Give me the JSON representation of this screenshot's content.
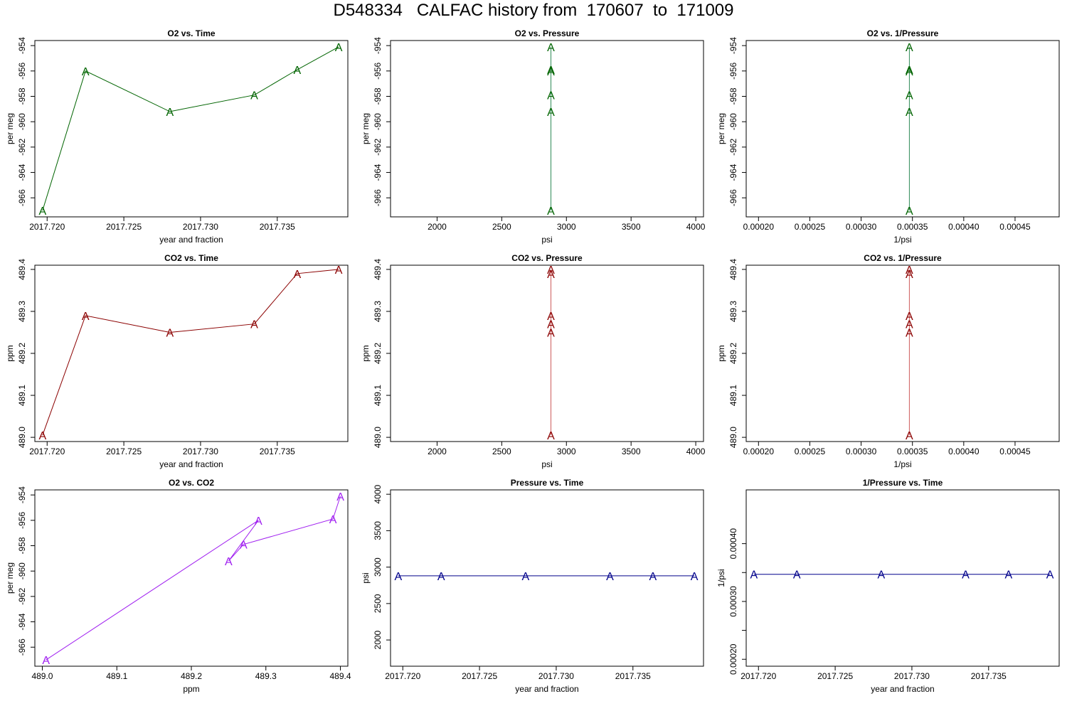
{
  "title": "D548334   CALFAC history from  170607  to  171009",
  "colors": {
    "o2": "#006400",
    "co2": "#8b0000",
    "o2_vs_co2": "#a020f0",
    "pressure": "#00008b",
    "co2_line_vs_pressure": "#cd5c5c",
    "o2_line_vs_pressure": "#2e8b57"
  },
  "chart_data": [
    {
      "id": "o2-vs-time",
      "type": "line",
      "title": "O2 vs. Time",
      "xlabel": "year and fraction",
      "ylabel": "per meg",
      "xlim": [
        2017.7192,
        2017.7396
      ],
      "ylim": [
        -967.5,
        -953.6
      ],
      "xticks": [
        "2017.720",
        "2017.725",
        "2017.730",
        "2017.735"
      ],
      "xtick_values": [
        2017.72,
        2017.725,
        2017.73,
        2017.735
      ],
      "yticks": [
        "-966",
        "-964",
        "-962",
        "-960",
        "-958",
        "-956",
        "-954"
      ],
      "ytick_values": [
        -966,
        -964,
        -962,
        -960,
        -958,
        -956,
        -954
      ],
      "marker": "A",
      "color": "#006400",
      "line_color": "#006400",
      "points": [
        [
          2017.7197,
          -967.0
        ],
        [
          2017.7225,
          -956.0
        ],
        [
          2017.728,
          -959.2
        ],
        [
          2017.7335,
          -957.9
        ],
        [
          2017.7363,
          -955.9
        ],
        [
          2017.739,
          -954.1
        ]
      ]
    },
    {
      "id": "o2-vs-pressure",
      "type": "line",
      "title": "O2 vs. Pressure",
      "xlabel": "psi",
      "ylabel": "per meg",
      "xlim": [
        1640,
        4060
      ],
      "ylim": [
        -967.5,
        -953.6
      ],
      "xticks": [
        "2000",
        "2500",
        "3000",
        "3500",
        "4000"
      ],
      "xtick_values": [
        2000,
        2500,
        3000,
        3500,
        4000
      ],
      "yticks": [
        "-966",
        "-964",
        "-962",
        "-960",
        "-958",
        "-956",
        "-954"
      ],
      "ytick_values": [
        -966,
        -964,
        -962,
        -960,
        -958,
        -956,
        -954
      ],
      "marker": "A",
      "color": "#006400",
      "line_color": "#2e8b57",
      "points": [
        [
          2880,
          -967.0
        ],
        [
          2880,
          -956.0
        ],
        [
          2880,
          -959.2
        ],
        [
          2880,
          -957.9
        ],
        [
          2880,
          -955.9
        ],
        [
          2880,
          -954.1
        ]
      ]
    },
    {
      "id": "o2-vs-inv-pressure",
      "type": "line",
      "title": "O2 vs. 1/Pressure",
      "xlabel": "1/psi",
      "ylabel": "per meg",
      "xlim": [
        0.000188,
        0.000493
      ],
      "ylim": [
        -967.5,
        -953.6
      ],
      "xticks": [
        "0.00020",
        "0.00025",
        "0.00030",
        "0.00035",
        "0.00040",
        "0.00045"
      ],
      "xtick_values": [
        0.0002,
        0.00025,
        0.0003,
        0.00035,
        0.0004,
        0.00045
      ],
      "yticks": [
        "-966",
        "-964",
        "-962",
        "-960",
        "-958",
        "-956",
        "-954"
      ],
      "ytick_values": [
        -966,
        -964,
        -962,
        -960,
        -958,
        -956,
        -954
      ],
      "marker": "A",
      "color": "#006400",
      "line_color": "#2e8b57",
      "points": [
        [
          0.000347,
          -967.0
        ],
        [
          0.000347,
          -956.0
        ],
        [
          0.000347,
          -959.2
        ],
        [
          0.000347,
          -957.9
        ],
        [
          0.000347,
          -955.9
        ],
        [
          0.000347,
          -954.1
        ]
      ]
    },
    {
      "id": "co2-vs-time",
      "type": "line",
      "title": "CO2 vs. Time",
      "xlabel": "year and fraction",
      "ylabel": "ppm",
      "xlim": [
        2017.7192,
        2017.7396
      ],
      "ylim": [
        488.99,
        489.41
      ],
      "xticks": [
        "2017.720",
        "2017.725",
        "2017.730",
        "2017.735"
      ],
      "xtick_values": [
        2017.72,
        2017.725,
        2017.73,
        2017.735
      ],
      "yticks": [
        "489.0",
        "489.1",
        "489.2",
        "489.3",
        "489.4"
      ],
      "ytick_values": [
        489.0,
        489.1,
        489.2,
        489.3,
        489.4
      ],
      "marker": "A",
      "color": "#8b0000",
      "line_color": "#8b0000",
      "points": [
        [
          2017.7197,
          489.005
        ],
        [
          2017.7225,
          489.29
        ],
        [
          2017.728,
          489.25
        ],
        [
          2017.7335,
          489.27
        ],
        [
          2017.7363,
          489.39
        ],
        [
          2017.739,
          489.4
        ]
      ]
    },
    {
      "id": "co2-vs-pressure",
      "type": "line",
      "title": "CO2 vs. Pressure",
      "xlabel": "psi",
      "ylabel": "ppm",
      "xlim": [
        1640,
        4060
      ],
      "ylim": [
        488.99,
        489.41
      ],
      "xticks": [
        "2000",
        "2500",
        "3000",
        "3500",
        "4000"
      ],
      "xtick_values": [
        2000,
        2500,
        3000,
        3500,
        4000
      ],
      "yticks": [
        "489.0",
        "489.1",
        "489.2",
        "489.3",
        "489.4"
      ],
      "ytick_values": [
        489.0,
        489.1,
        489.2,
        489.3,
        489.4
      ],
      "marker": "A",
      "color": "#8b0000",
      "line_color": "#cd5c5c",
      "points": [
        [
          2880,
          489.005
        ],
        [
          2880,
          489.29
        ],
        [
          2880,
          489.25
        ],
        [
          2880,
          489.27
        ],
        [
          2880,
          489.39
        ],
        [
          2880,
          489.4
        ]
      ]
    },
    {
      "id": "co2-vs-inv-pressure",
      "type": "line",
      "title": "CO2 vs. 1/Pressure",
      "xlabel": "1/psi",
      "ylabel": "ppm",
      "xlim": [
        0.000188,
        0.000493
      ],
      "ylim": [
        488.99,
        489.41
      ],
      "xticks": [
        "0.00020",
        "0.00025",
        "0.00030",
        "0.00035",
        "0.00040",
        "0.00045"
      ],
      "xtick_values": [
        0.0002,
        0.00025,
        0.0003,
        0.00035,
        0.0004,
        0.00045
      ],
      "yticks": [
        "489.0",
        "489.1",
        "489.2",
        "489.3",
        "489.4"
      ],
      "ytick_values": [
        489.0,
        489.1,
        489.2,
        489.3,
        489.4
      ],
      "marker": "A",
      "color": "#8b0000",
      "line_color": "#cd5c5c",
      "points": [
        [
          0.000347,
          489.005
        ],
        [
          0.000347,
          489.29
        ],
        [
          0.000347,
          489.25
        ],
        [
          0.000347,
          489.27
        ],
        [
          0.000347,
          489.39
        ],
        [
          0.000347,
          489.4
        ]
      ]
    },
    {
      "id": "o2-vs-co2",
      "type": "line",
      "title": "O2 vs. CO2",
      "xlabel": "ppm",
      "ylabel": "per meg",
      "xlim": [
        488.99,
        489.41
      ],
      "ylim": [
        -967.5,
        -953.6
      ],
      "xticks": [
        "489.0",
        "489.1",
        "489.2",
        "489.3",
        "489.4"
      ],
      "xtick_values": [
        489.0,
        489.1,
        489.2,
        489.3,
        489.4
      ],
      "yticks": [
        "-966",
        "-964",
        "-962",
        "-960",
        "-958",
        "-956",
        "-954"
      ],
      "ytick_values": [
        -966,
        -964,
        -962,
        -960,
        -958,
        -956,
        -954
      ],
      "marker": "A",
      "color": "#a020f0",
      "line_color": "#a020f0",
      "points": [
        [
          489.005,
          -967.0
        ],
        [
          489.29,
          -956.0
        ],
        [
          489.25,
          -959.2
        ],
        [
          489.27,
          -957.9
        ],
        [
          489.39,
          -955.9
        ],
        [
          489.4,
          -954.1
        ]
      ]
    },
    {
      "id": "pressure-vs-time",
      "type": "line",
      "title": "Pressure vs. Time",
      "xlabel": "year and fraction",
      "ylabel": "psi",
      "xlim": [
        2017.7192,
        2017.7396
      ],
      "ylim": [
        1640,
        4060
      ],
      "xticks": [
        "2017.720",
        "2017.725",
        "2017.730",
        "2017.735"
      ],
      "xtick_values": [
        2017.72,
        2017.725,
        2017.73,
        2017.735
      ],
      "yticks": [
        "2000",
        "2500",
        "3000",
        "3500",
        "4000"
      ],
      "ytick_values": [
        2000,
        2500,
        3000,
        3500,
        4000
      ],
      "marker": "A",
      "color": "#00008b",
      "line_color": "#00008b",
      "points": [
        [
          2017.7197,
          2880
        ],
        [
          2017.7225,
          2880
        ],
        [
          2017.728,
          2880
        ],
        [
          2017.7335,
          2880
        ],
        [
          2017.7363,
          2880
        ],
        [
          2017.739,
          2880
        ]
      ]
    },
    {
      "id": "inv-pressure-vs-time",
      "type": "line",
      "title": "1/Pressure vs. Time",
      "xlabel": "year and fraction",
      "ylabel": "1/psi",
      "xlim": [
        2017.7192,
        2017.7396
      ],
      "ylim": [
        0.000188,
        0.000493
      ],
      "xticks": [
        "2017.720",
        "2017.725",
        "2017.730",
        "2017.735"
      ],
      "xtick_values": [
        2017.72,
        2017.725,
        2017.73,
        2017.735
      ],
      "yticks": [
        "0.00020",
        "",
        "0.00030",
        "",
        "0.00040"
      ],
      "ytick_values": [
        0.0002,
        0.00025,
        0.0003,
        0.00035,
        0.0004
      ],
      "marker": "A",
      "color": "#00008b",
      "line_color": "#00008b",
      "points": [
        [
          2017.7197,
          0.000347
        ],
        [
          2017.7225,
          0.000347
        ],
        [
          2017.728,
          0.000347
        ],
        [
          2017.7335,
          0.000347
        ],
        [
          2017.7363,
          0.000347
        ],
        [
          2017.739,
          0.000347
        ]
      ]
    }
  ]
}
